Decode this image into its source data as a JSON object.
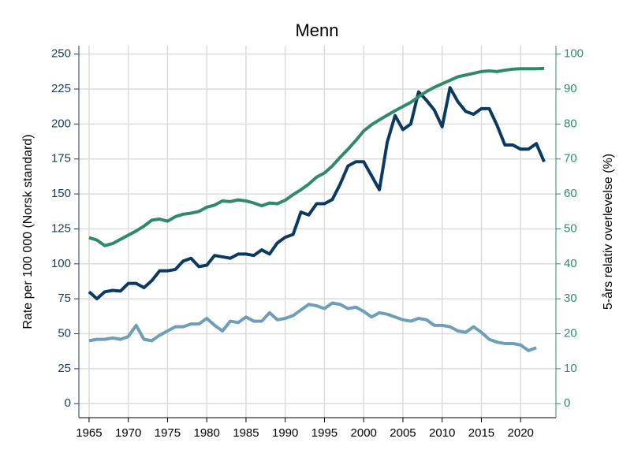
{
  "chart_data": {
    "type": "line",
    "title": "Menn",
    "ylabel": "Rate per 100 000 (Norsk standard)",
    "y2label": "5-års relativ overlevelse (%)",
    "x": [
      1965,
      1966,
      1967,
      1968,
      1969,
      1970,
      1971,
      1972,
      1973,
      1974,
      1975,
      1976,
      1977,
      1978,
      1979,
      1980,
      1981,
      1982,
      1983,
      1984,
      1985,
      1986,
      1987,
      1988,
      1989,
      1990,
      1991,
      1992,
      1993,
      1994,
      1995,
      1996,
      1997,
      1998,
      1999,
      2000,
      2001,
      2002,
      2003,
      2004,
      2005,
      2006,
      2007,
      2008,
      2009,
      2010,
      2011,
      2012,
      2013,
      2014,
      2015,
      2016,
      2017,
      2018,
      2019,
      2020,
      2021,
      2022,
      2023
    ],
    "series": [
      {
        "color": "#0b3a60",
        "values": [
          80,
          75,
          80,
          81,
          80.5,
          86,
          86,
          83,
          88,
          95,
          95,
          96,
          102,
          104,
          98,
          99,
          106,
          105,
          104,
          107,
          107,
          106,
          110,
          107,
          115,
          119,
          121,
          137,
          135,
          143,
          143,
          146,
          157,
          170,
          173,
          173,
          163,
          153,
          187,
          206,
          196,
          200,
          223,
          217,
          210,
          198,
          226,
          216,
          209,
          207,
          211,
          211,
          199,
          185,
          185,
          182,
          182,
          186,
          173
        ]
      },
      {
        "color": "#6d9fb8",
        "values": [
          45,
          46,
          46,
          47,
          46,
          48,
          56,
          46,
          45,
          49,
          52,
          55,
          55,
          57,
          57,
          61,
          56,
          52,
          59,
          58,
          62,
          59,
          59,
          65,
          60,
          61,
          63,
          67,
          71,
          70,
          68,
          72,
          71,
          68,
          69,
          66,
          62,
          65,
          64,
          62,
          60,
          59,
          61,
          60,
          56,
          56,
          55,
          52,
          51,
          55,
          51,
          46,
          44,
          43,
          43,
          42,
          38,
          40,
          null
        ]
      },
      {
        "color": "#2f8a69",
        "axis": "y2",
        "values": [
          47.5,
          46.8,
          45.2,
          45.8,
          47,
          48.2,
          49.4,
          50.8,
          52.5,
          52.8,
          52.2,
          53.5,
          54.2,
          54.5,
          55,
          56.2,
          56.8,
          58,
          57.8,
          58.3,
          58,
          57.4,
          56.6,
          57.4,
          57.2,
          58.2,
          59.8,
          61.2,
          62.8,
          64.8,
          66,
          68,
          70.5,
          72.8,
          75.3,
          78,
          79.8,
          81.2,
          82.5,
          83.8,
          85,
          86.2,
          87.8,
          89.3,
          90.5,
          91.5,
          92.5,
          93.5,
          94,
          94.5,
          95,
          95.2,
          95,
          95.4,
          95.7,
          95.8,
          95.8,
          95.8,
          95.9
        ]
      }
    ],
    "xlim": [
      1963.7,
      2024.5
    ],
    "xticks": [
      1965,
      1970,
      1975,
      1980,
      1985,
      1990,
      1995,
      2000,
      2005,
      2010,
      2015,
      2020
    ],
    "ylim": [
      -10,
      256
    ],
    "yticks": [
      0,
      25,
      50,
      75,
      100,
      125,
      150,
      175,
      200,
      225,
      250
    ],
    "y2lim": [
      -4,
      102.4
    ],
    "y2ticks": [
      0,
      10,
      20,
      30,
      40,
      50,
      60,
      70,
      80,
      90,
      100
    ],
    "grid": true
  }
}
